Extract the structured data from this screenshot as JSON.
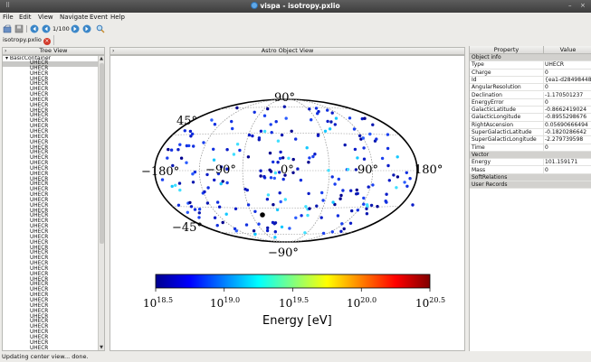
{
  "window": {
    "title": "vispa - isotropy.pxlio",
    "sys_min": "–",
    "sys_close": "×"
  },
  "menu": [
    {
      "label": "File",
      "left": 0
    },
    {
      "label": "Edit",
      "left": 0
    },
    {
      "label": "View",
      "left": 0
    },
    {
      "label": "Navigate",
      "left": 0
    },
    {
      "label": "Event",
      "left": 0
    },
    {
      "label": "Help",
      "left": 0
    }
  ],
  "toolbar": {
    "page_indicator": "1/100"
  },
  "file_tab": {
    "label": "isotropy.pxlio"
  },
  "tree_view": {
    "header": "Tree View",
    "root": "▾ BasicContainer",
    "child_label": "UHECR",
    "child_count": 56
  },
  "astro_view": {
    "header": "Astro Object View",
    "lat_labels": [
      "90°",
      "45°",
      "−45°",
      "−90°"
    ],
    "lon_labels": [
      "−180°",
      "−90°",
      "0°",
      "90°",
      "180°"
    ],
    "colorbar_ticks": [
      "10",
      "10",
      "10",
      "10",
      "10"
    ],
    "colorbar_exps": [
      "18.5",
      "19.0",
      "19.5",
      "20.0",
      "20.5"
    ],
    "colorbar_label": "Energy [eV]"
  },
  "properties": {
    "col_property": "Property",
    "col_value": "Value",
    "rows": [
      {
        "k": "Object info",
        "v": "",
        "section": true
      },
      {
        "k": "Type",
        "v": "UHECR"
      },
      {
        "k": "Charge",
        "v": "0"
      },
      {
        "k": "Id",
        "v": "{ea1-d28498448f7"
      },
      {
        "k": "AngularResolution",
        "v": "0"
      },
      {
        "k": "Declination",
        "v": "-1.170501237"
      },
      {
        "k": "EnergyError",
        "v": "0"
      },
      {
        "k": "GalacticLatitude",
        "v": "-0.8662419024"
      },
      {
        "k": "GalacticLongitude",
        "v": "-0.8955298676"
      },
      {
        "k": "RightAscension",
        "v": "0.05690666494"
      },
      {
        "k": "SuperGalacticLatitude",
        "v": "-0.1820286642"
      },
      {
        "k": "SuperGalacticLongitude",
        "v": "-2.279739598"
      },
      {
        "k": "Time",
        "v": "0"
      },
      {
        "k": "Vector",
        "v": "",
        "section": true
      },
      {
        "k": "Energy",
        "v": "101.159171"
      },
      {
        "k": "Mass",
        "v": "0"
      },
      {
        "k": "SoftRelations",
        "v": "",
        "section": true
      },
      {
        "k": "User Records",
        "v": "",
        "section": true
      }
    ]
  },
  "status": {
    "text": "Updating center view... done."
  },
  "colors": {
    "accent": "#5fa8e8",
    "close_red": "#d23a2a"
  }
}
